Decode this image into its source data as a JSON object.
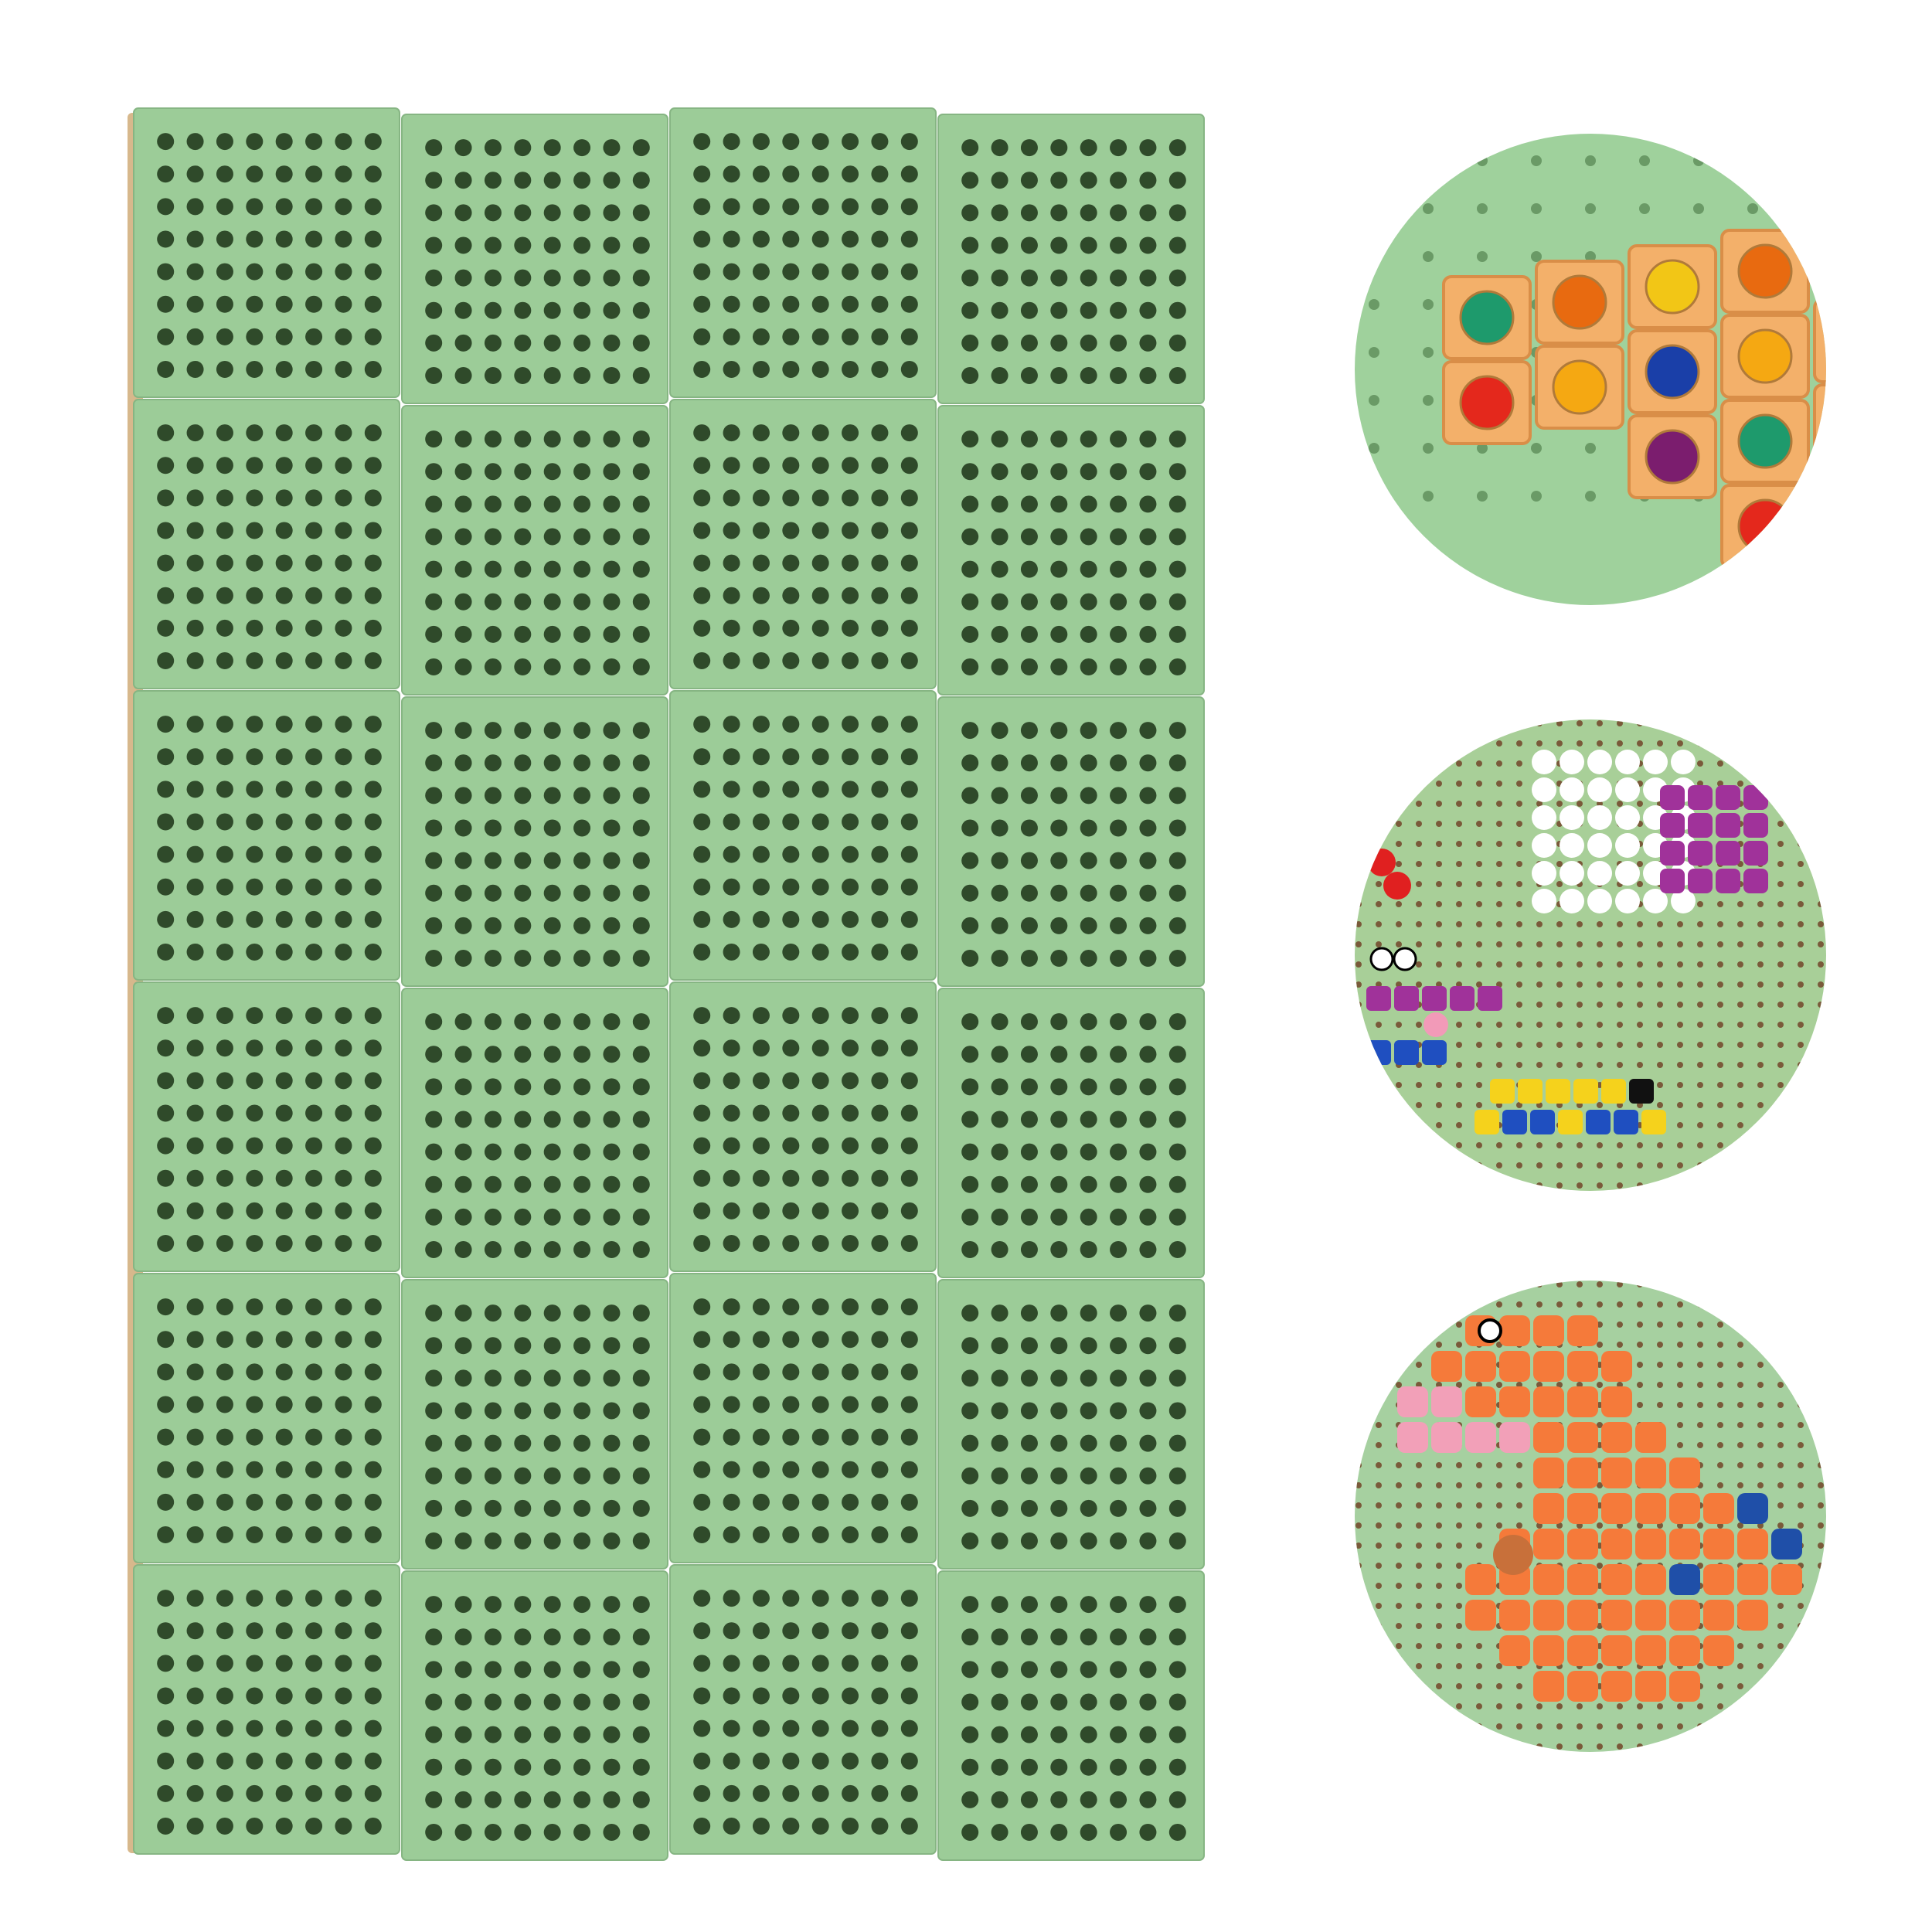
{
  "board": {
    "columns": 4,
    "rows": 6,
    "holes_per_tile": 8,
    "colors": {
      "surface": "#9ccc98",
      "edge": "#d7b88c",
      "hole": "#2f4a2a",
      "seam": "#86b583"
    }
  },
  "detail_circles": [
    {
      "name": "gem-blocks-detail",
      "colors": {
        "base": "#9fd19c",
        "block": "#f3b06a",
        "gems": [
          "#e4281c",
          "#1e9a6c",
          "#f5a812",
          "#e86a10",
          "#7b1d6e",
          "#1a3fa8",
          "#f2c616"
        ]
      }
    },
    {
      "name": "mosaic-animals-detail",
      "colors": {
        "base": "#a8cf98",
        "pegs": [
          "#ffffff",
          "#a0329a",
          "#e02020",
          "#1f4fc0",
          "#f5d21c",
          "#111111",
          "#f29ab8"
        ]
      }
    },
    {
      "name": "dinosaur-detail",
      "colors": {
        "base": "#a6d0a0",
        "pegs": [
          "#f57a3a",
          "#f2a0b8",
          "#1f4fa8",
          "#c8703a"
        ]
      }
    }
  ]
}
